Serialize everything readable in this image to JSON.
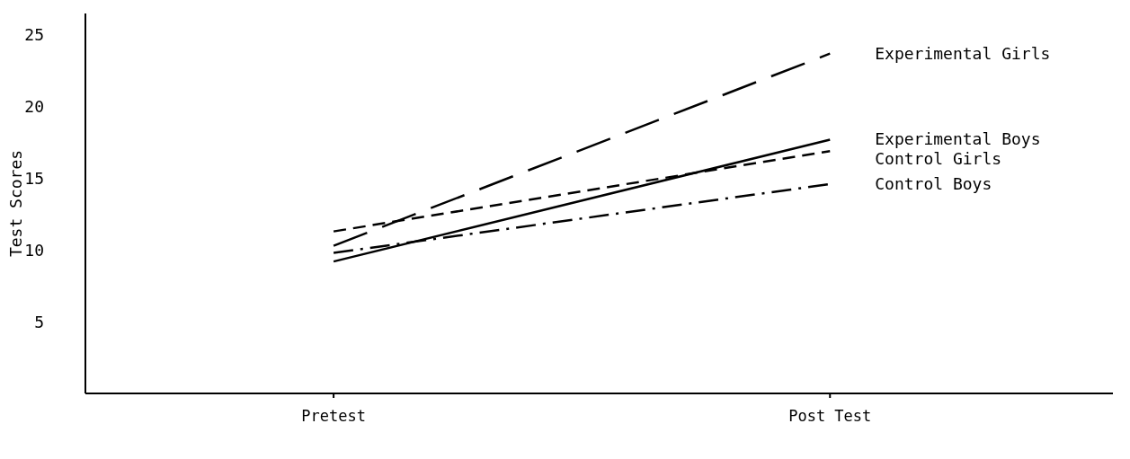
{
  "chart_data": {
    "type": "line",
    "ylabel": "Test Scores",
    "categories": [
      "Pretest",
      "Post Test"
    ],
    "series": [
      {
        "name": "Experimental Girls",
        "color": "#000000",
        "values": [
          10.3,
          23.7
        ],
        "line_style": "long-dashed"
      },
      {
        "name": "Experimental Boys",
        "color": "#000000",
        "values": [
          9.2,
          17.7
        ],
        "line_style": "solid"
      },
      {
        "name": "Control Girls",
        "color": "#000000",
        "values": [
          11.3,
          16.9
        ],
        "line_style": "dashed"
      },
      {
        "name": "Control Boys",
        "color": "#000000",
        "values": [
          9.8,
          14.6
        ],
        "line_style": "dashdot"
      }
    ],
    "ylim": [
      0,
      26.5
    ],
    "yticks": [
      5,
      10,
      15,
      20,
      25
    ],
    "grid": false,
    "legend": false,
    "marker": "none"
  }
}
